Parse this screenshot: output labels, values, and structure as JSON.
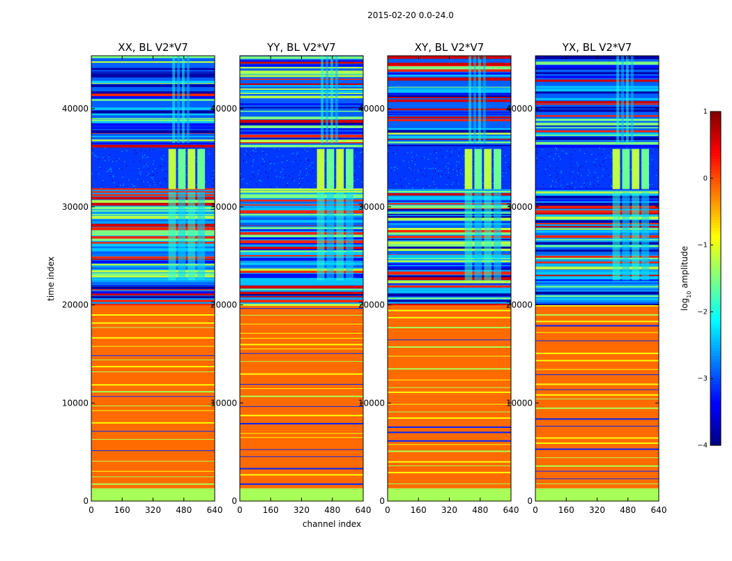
{
  "chart_data": {
    "type": "heatmap",
    "title": "2015-02-20 0.0-24.0",
    "xlabel": "channel index",
    "ylabel": "time index",
    "xlim": [
      0,
      640
    ],
    "ylim": [
      0,
      45400
    ],
    "xticks": [
      "0",
      "160",
      "320",
      "480",
      "640"
    ],
    "xtick_values": [
      0,
      160,
      320,
      480,
      640
    ],
    "yticks": [
      "0",
      "10000",
      "20000",
      "30000",
      "40000"
    ],
    "ytick_values": [
      0,
      10000,
      20000,
      30000,
      40000
    ],
    "panels": [
      {
        "title": "XX, BL V2*V7"
      },
      {
        "title": "YY, BL V2*V7"
      },
      {
        "title": "XY, BL V2*V7"
      },
      {
        "title": "YX, BL V2*V7"
      }
    ],
    "colorbar": {
      "label": "log10 amplitude",
      "label_main": "log",
      "label_sub": "10",
      "label_rest": " amplitude",
      "range": [
        -4,
        1
      ],
      "ticks": [
        "1",
        "0",
        "−1",
        "−2",
        "−3",
        "−4"
      ],
      "tick_values": [
        1,
        0,
        -1,
        -2,
        -3,
        -4
      ],
      "colormap": "jet"
    },
    "bands": [
      {
        "t0": 0,
        "t1": 1300,
        "value": -1.3
      },
      {
        "t0": 1300,
        "t1": 20000,
        "value": -0.15
      },
      {
        "t0": 20000,
        "t1": 31800,
        "value": -2.6,
        "textured": true
      },
      {
        "t0": 31800,
        "t1": 36200,
        "value": -3.1
      },
      {
        "t0": 36200,
        "t1": 45400,
        "value": -2.9,
        "textured": true
      }
    ],
    "rfi_regions": [
      {
        "t0": 31800,
        "t1": 35900,
        "ch0": 400,
        "ch1": 600,
        "value": -1.2
      },
      {
        "t0": 36500,
        "t1": 45400,
        "ch0": 420,
        "ch1": 520,
        "value": -2.0
      },
      {
        "t0": 22500,
        "t1": 31500,
        "ch0": 400,
        "ch1": 600,
        "value": -1.9
      }
    ]
  }
}
